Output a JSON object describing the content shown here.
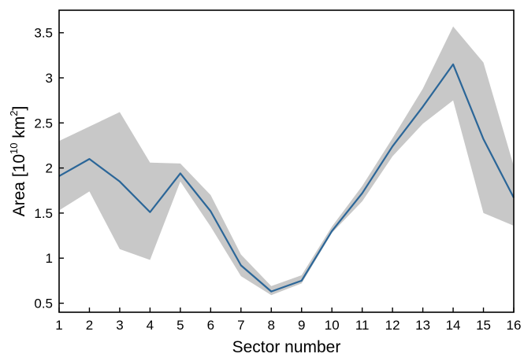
{
  "chart_data": {
    "type": "line",
    "title": "",
    "xlabel": "Sector number",
    "ylabel_parts": {
      "a": "Area [10",
      "b": "10",
      "c": " km",
      "d": "2",
      "e": "]"
    },
    "xlim": [
      1,
      16
    ],
    "ylim": [
      0.4,
      3.75
    ],
    "x_ticks": [
      1,
      2,
      3,
      4,
      5,
      6,
      7,
      8,
      9,
      10,
      11,
      12,
      13,
      14,
      15,
      16
    ],
    "x_tick_labels": [
      "1",
      "2",
      "3",
      "4",
      "5",
      "6",
      "7",
      "8",
      "9",
      "10",
      "11",
      "12",
      "13",
      "14",
      "15",
      "16"
    ],
    "y_ticks": [
      0.5,
      1,
      1.5,
      2,
      2.5,
      3,
      3.5
    ],
    "y_tick_labels": [
      "0.5",
      "1",
      "1.5",
      "2",
      "2.5",
      "3",
      "3.5"
    ],
    "grid": false,
    "series": [
      {
        "x": [
          1,
          2,
          3,
          4,
          5,
          6,
          7,
          8,
          9,
          10,
          11,
          12,
          13,
          14,
          15,
          16
        ],
        "values": [
          1.91,
          2.1,
          1.85,
          1.51,
          1.94,
          1.52,
          0.92,
          0.63,
          0.75,
          1.3,
          1.72,
          2.24,
          2.68,
          3.15,
          2.32,
          1.67
        ],
        "lower": [
          1.53,
          1.74,
          1.1,
          0.98,
          1.85,
          1.35,
          0.8,
          0.59,
          0.72,
          1.28,
          1.63,
          2.13,
          2.49,
          2.75,
          1.5,
          1.36
        ],
        "upper": [
          2.3,
          2.46,
          2.62,
          2.06,
          2.05,
          1.7,
          1.04,
          0.69,
          0.81,
          1.35,
          1.8,
          2.33,
          2.88,
          3.57,
          3.17,
          2.02
        ],
        "color": "#2b6698",
        "band_color": "#c8c8c8"
      }
    ]
  }
}
